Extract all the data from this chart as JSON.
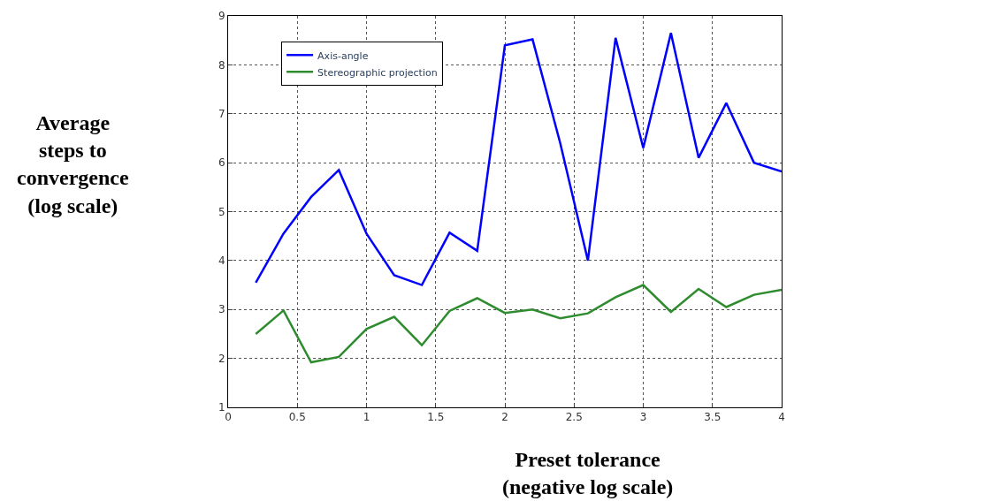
{
  "chart_data": {
    "type": "line",
    "xlabel": "Preset tolerance\n(negative log scale)",
    "ylabel": "Average\nsteps to\nconvergence\n(log scale)",
    "x": [
      0.2,
      0.4,
      0.6,
      0.8,
      1.0,
      1.2,
      1.4,
      1.6,
      1.8,
      2.0,
      2.2,
      2.4,
      2.6,
      2.8,
      3.0,
      3.2,
      3.4,
      3.6,
      3.8,
      4.0
    ],
    "series": [
      {
        "name": "Axis-angle",
        "color": "#0000ff",
        "values": [
          3.55,
          4.55,
          5.3,
          5.85,
          4.55,
          3.7,
          3.5,
          4.57,
          4.2,
          8.4,
          8.52,
          6.4,
          4.0,
          8.55,
          6.3,
          8.65,
          6.1,
          7.22,
          6.0,
          5.82
        ]
      },
      {
        "name": "Stereographic projection",
        "color": "#2e8b2e",
        "values": [
          2.5,
          2.98,
          1.92,
          2.03,
          2.6,
          2.85,
          2.27,
          2.97,
          3.23,
          2.93,
          3.0,
          2.82,
          2.92,
          3.25,
          3.5,
          2.95,
          3.42,
          3.05,
          3.3,
          3.4
        ]
      }
    ],
    "xlim": [
      0,
      4
    ],
    "xticks": [
      0,
      0.5,
      1,
      1.5,
      2,
      2.5,
      3,
      3.5,
      4
    ],
    "ylim": [
      1,
      9
    ],
    "yticks": [
      1,
      2,
      3,
      4,
      5,
      6,
      7,
      8,
      9
    ],
    "grid": true,
    "legend": "top left",
    "line_style": "solid",
    "marker": "none"
  }
}
